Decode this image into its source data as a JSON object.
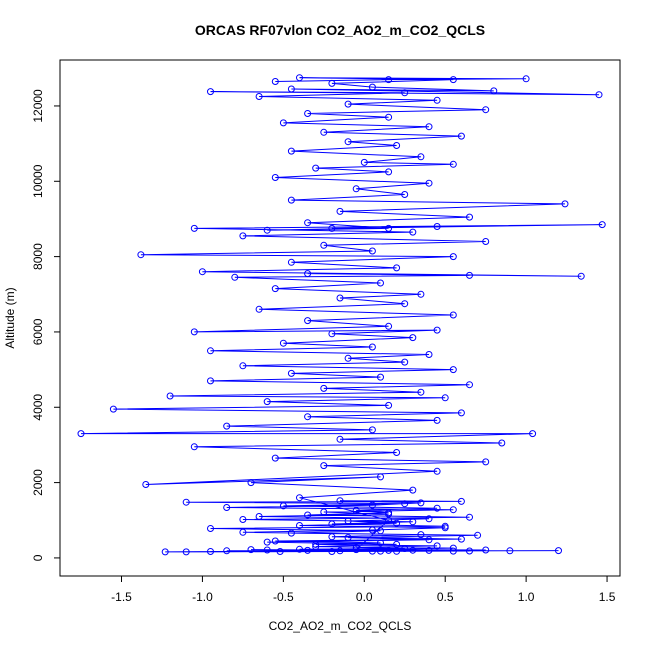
{
  "chart_data": {
    "type": "scatter",
    "title": "ORCAS RF07vlon CO2_AO2_m_CO2_QCLS",
    "xlabel": "CO2_AO2_m_CO2_QCLS",
    "ylabel": "Altitude (m)",
    "xlim": [
      -1.88,
      1.58
    ],
    "ylim": [
      -480,
      13220
    ],
    "xticks": [
      -1.5,
      -1.0,
      -0.5,
      0.0,
      0.5,
      1.0,
      1.5
    ],
    "xtick_labels": [
      "-1.5",
      "-1.0",
      "-0.5",
      "0.0",
      "0.5",
      "1.0",
      "1.5"
    ],
    "yticks": [
      0,
      2000,
      4000,
      6000,
      8000,
      10000,
      12000
    ],
    "ytick_labels": [
      "0",
      "2000",
      "4000",
      "6000",
      "8000",
      "10000",
      "12000"
    ],
    "grid": false,
    "legend": "none",
    "series_style": "points-and-lines (open circles joined by lines)",
    "color": "#0000ff",
    "series": [
      {
        "points": [
          [
            -0.52,
            170
          ],
          [
            0.1,
            180
          ],
          [
            -0.85,
            190
          ],
          [
            0.4,
            200
          ],
          [
            -0.2,
            170
          ],
          [
            0.65,
            185
          ],
          [
            -1.1,
            160
          ],
          [
            0.2,
            175
          ],
          [
            -0.35,
            200
          ],
          [
            0.9,
            190
          ],
          [
            -0.6,
            210
          ],
          [
            0.05,
            180
          ],
          [
            1.2,
            195
          ],
          [
            -0.95,
            170
          ],
          [
            0.3,
            205
          ],
          [
            -0.15,
            190
          ],
          [
            0.55,
            180
          ],
          [
            -0.7,
            220
          ],
          [
            0.15,
            200
          ],
          [
            -1.23,
            160
          ],
          [
            0.75,
            210
          ],
          [
            -0.4,
            230
          ],
          [
            0.25,
            250
          ],
          [
            -0.05,
            280
          ],
          [
            0.45,
            320
          ],
          [
            -0.3,
            360
          ],
          [
            0.1,
            400
          ],
          [
            -0.55,
            450
          ],
          [
            0.6,
            500
          ],
          [
            -0.2,
            560
          ],
          [
            0.35,
            620
          ],
          [
            -0.75,
            680
          ],
          [
            0.05,
            740
          ],
          [
            0.5,
            800
          ],
          [
            -0.4,
            860
          ],
          [
            0.2,
            920
          ],
          [
            -0.1,
            980
          ],
          [
            0.4,
            1040
          ],
          [
            -0.65,
            1100
          ],
          [
            0.15,
            1160
          ],
          [
            -0.25,
            1220
          ],
          [
            0.55,
            1280
          ],
          [
            -0.85,
            1340
          ],
          [
            0.05,
            1400
          ],
          [
            0.35,
            1460
          ],
          [
            -0.15,
            1520
          ],
          [
            0.6,
            1500
          ],
          [
            -1.1,
            1480
          ],
          [
            0.25,
            1440
          ],
          [
            -0.5,
            1380
          ],
          [
            0.45,
            1320
          ],
          [
            -0.05,
            1260
          ],
          [
            0.15,
            1200
          ],
          [
            -0.35,
            1140
          ],
          [
            0.65,
            1080
          ],
          [
            -0.75,
            1020
          ],
          [
            0.3,
            960
          ],
          [
            -0.2,
            900
          ],
          [
            0.5,
            840
          ],
          [
            -0.95,
            780
          ],
          [
            0.1,
            720
          ],
          [
            -0.45,
            660
          ],
          [
            0.7,
            600
          ],
          [
            -0.1,
            540
          ],
          [
            0.4,
            480
          ],
          [
            -0.6,
            420
          ],
          [
            0.2,
            360
          ],
          [
            -0.3,
            300
          ],
          [
            0.55,
            260
          ],
          [
            -0.05,
            220
          ],
          [
            0.15,
            1000
          ],
          [
            -0.4,
            1600
          ],
          [
            0.3,
            1800
          ],
          [
            -0.7,
            2000
          ],
          [
            0.1,
            2150
          ],
          [
            -1.35,
            1950
          ],
          [
            0.45,
            2300
          ],
          [
            -0.25,
            2450
          ],
          [
            0.75,
            2550
          ],
          [
            -0.55,
            2650
          ],
          [
            0.2,
            2800
          ],
          [
            -1.05,
            2950
          ],
          [
            0.85,
            3050
          ],
          [
            -0.15,
            3150
          ],
          [
            1.04,
            3300
          ],
          [
            -1.75,
            3300
          ],
          [
            0.05,
            3400
          ],
          [
            -0.85,
            3500
          ],
          [
            0.45,
            3650
          ],
          [
            -0.35,
            3750
          ],
          [
            0.6,
            3850
          ],
          [
            -1.55,
            3950
          ],
          [
            0.15,
            4050
          ],
          [
            -0.6,
            4150
          ],
          [
            0.5,
            4250
          ],
          [
            -1.2,
            4300
          ],
          [
            0.35,
            4400
          ],
          [
            -0.25,
            4500
          ],
          [
            0.65,
            4600
          ],
          [
            -0.95,
            4700
          ],
          [
            0.1,
            4800
          ],
          [
            -0.45,
            4900
          ],
          [
            0.55,
            5000
          ],
          [
            -0.75,
            5100
          ],
          [
            0.25,
            5200
          ],
          [
            -0.1,
            5300
          ],
          [
            0.4,
            5400
          ],
          [
            -0.95,
            5500
          ],
          [
            0.05,
            5600
          ],
          [
            -0.5,
            5700
          ],
          [
            0.3,
            5850
          ],
          [
            -0.2,
            5950
          ],
          [
            0.45,
            6050
          ],
          [
            -1.05,
            6000
          ],
          [
            0.15,
            6150
          ],
          [
            -0.35,
            6300
          ],
          [
            0.55,
            6450
          ],
          [
            -0.65,
            6600
          ],
          [
            0.25,
            6750
          ],
          [
            -0.15,
            6900
          ],
          [
            0.35,
            7000
          ],
          [
            -0.55,
            7150
          ],
          [
            0.1,
            7300
          ],
          [
            -0.8,
            7450
          ],
          [
            0.65,
            7500
          ],
          [
            -0.35,
            7550
          ],
          [
            1.34,
            7480
          ],
          [
            -1.0,
            7600
          ],
          [
            0.2,
            7700
          ],
          [
            -0.45,
            7850
          ],
          [
            0.55,
            8000
          ],
          [
            -1.38,
            8050
          ],
          [
            0.05,
            8150
          ],
          [
            -0.25,
            8300
          ],
          [
            0.75,
            8400
          ],
          [
            -0.75,
            8550
          ],
          [
            0.3,
            8650
          ],
          [
            -1.05,
            8750
          ],
          [
            1.47,
            8850
          ],
          [
            -0.2,
            8750
          ],
          [
            0.45,
            8800
          ],
          [
            -0.6,
            8700
          ],
          [
            0.15,
            8750
          ],
          [
            -0.35,
            8900
          ],
          [
            0.65,
            9050
          ],
          [
            -0.15,
            9200
          ],
          [
            1.24,
            9400
          ],
          [
            -0.45,
            9500
          ],
          [
            0.25,
            9650
          ],
          [
            -0.05,
            9800
          ],
          [
            0.4,
            9950
          ],
          [
            -0.55,
            10100
          ],
          [
            0.15,
            10250
          ],
          [
            -0.3,
            10350
          ],
          [
            0.55,
            10450
          ],
          [
            0.0,
            10500
          ],
          [
            0.35,
            10650
          ],
          [
            -0.45,
            10800
          ],
          [
            0.2,
            10950
          ],
          [
            -0.1,
            11050
          ],
          [
            0.6,
            11200
          ],
          [
            -0.25,
            11300
          ],
          [
            0.4,
            11450
          ],
          [
            -0.5,
            11550
          ],
          [
            0.15,
            11700
          ],
          [
            -0.35,
            11800
          ],
          [
            0.75,
            11900
          ],
          [
            -0.1,
            12050
          ],
          [
            0.45,
            12150
          ],
          [
            -0.65,
            12250
          ],
          [
            0.25,
            12350
          ],
          [
            -0.95,
            12380
          ],
          [
            1.45,
            12300
          ],
          [
            -0.45,
            12450
          ],
          [
            0.8,
            12400
          ],
          [
            0.05,
            12500
          ],
          [
            -0.2,
            12600
          ],
          [
            0.55,
            12700
          ],
          [
            -0.4,
            12750
          ],
          [
            1.0,
            12720
          ],
          [
            0.15,
            12700
          ],
          [
            -0.55,
            12650
          ]
        ]
      }
    ]
  }
}
